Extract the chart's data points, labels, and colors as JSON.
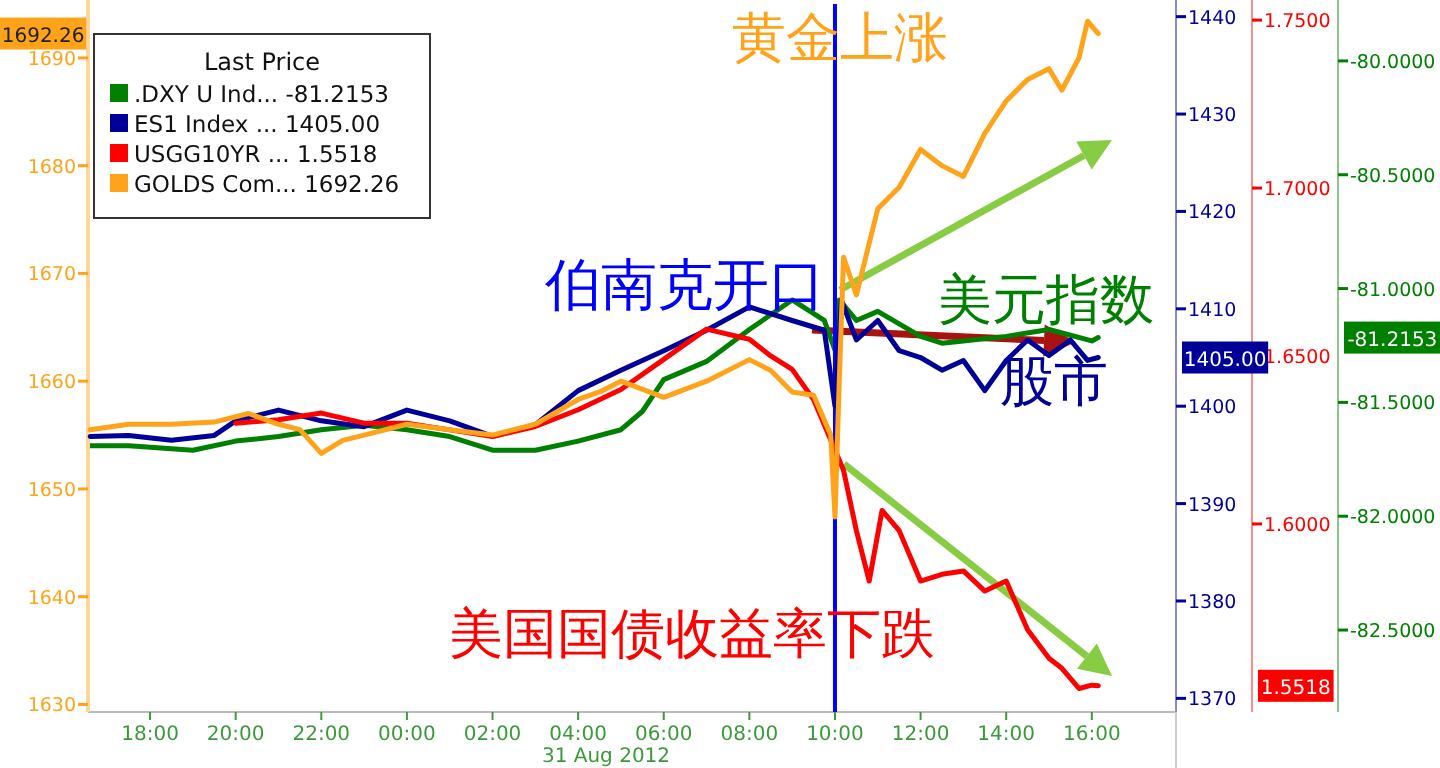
{
  "chart_data": [
    {
      "type": "line",
      "legend": "top left",
      "legend_title": "Last Price",
      "grid": false,
      "xlim": [
        "2012-08-30T16:33",
        "2012-08-31T17:58"
      ],
      "xticks": [
        {
          "value": "2012-08-30T18:00",
          "label": "18:00"
        },
        {
          "value": "2012-08-30T20:00",
          "label": "20:00"
        },
        {
          "value": "2012-08-30T22:00",
          "label": "22:00"
        },
        {
          "value": "2012-08-31T00:00",
          "label": "00:00"
        },
        {
          "value": "2012-08-31T02:00",
          "label": "02:00"
        },
        {
          "value": "2012-08-31T04:00",
          "label": "04:00"
        },
        {
          "value": "2012-08-31T06:00",
          "label": "06:00"
        },
        {
          "value": "2012-08-31T08:00",
          "label": "08:00"
        },
        {
          "value": "2012-08-31T10:00",
          "label": "10:00"
        },
        {
          "value": "2012-08-31T12:00",
          "label": "12:00"
        },
        {
          "value": "2012-08-31T14:00",
          "label": "14:00"
        },
        {
          "value": "2012-08-31T16:00",
          "label": "16:00"
        }
      ],
      "ylim": [
        1629.3,
        1695
      ],
      "yticks": [
        1630,
        1640,
        1650,
        1660,
        1670,
        1680,
        1690
      ],
      "y2lim": [
        1368.6,
        1441.3
      ],
      "y2ticks": [
        1370,
        1380,
        1390,
        1400,
        1410,
        1420,
        1430,
        1440
      ],
      "y3lim": [
        1.544,
        1.7548
      ],
      "y3ticks": [
        {
          "value": 1.6,
          "label": "1.6000"
        },
        {
          "value": 1.65,
          "label": "1.6500"
        },
        {
          "value": 1.7,
          "label": "1.7000"
        },
        {
          "value": 1.75,
          "label": "1.7500"
        }
      ],
      "ref_lines": [
        {
          "axis": "x",
          "value": "2012-08-31T10:00",
          "color": "#0000ff"
        }
      ],
      "annotations": [
        "黄金上涨",
        {
          "text": "伯南克开口",
          "x": "2012-08-31T10:00",
          "y": 1669
        },
        "股市",
        "美国国债收益率下跌",
        "31 Aug 2012",
        "1692.26",
        "1405.00",
        "1.5518"
      ],
      "series": [
        {
          "name": "ES1 Index  ... 1405.00",
          "color": "#000099",
          "axis": "y2",
          "x": [
            "2012-08-30T16:36",
            "2012-08-30T17:30",
            "2012-08-30T18:30",
            "2012-08-30T19:30",
            "2012-08-30T20:00",
            "2012-08-30T21:00",
            "2012-08-30T22:00",
            "2012-08-30T23:00",
            "2012-08-31T00:00",
            "2012-08-31T01:00",
            "2012-08-31T02:00",
            "2012-08-31T03:00",
            "2012-08-31T04:00",
            "2012-08-31T05:00",
            "2012-08-31T06:00",
            "2012-08-31T07:00",
            "2012-08-31T08:00",
            "2012-08-31T09:00",
            "2012-08-31T09:45",
            "2012-08-31T10:00",
            "2012-08-31T10:09",
            "2012-08-31T10:30",
            "2012-08-31T11:00",
            "2012-08-31T11:30",
            "2012-08-31T12:00",
            "2012-08-31T12:30",
            "2012-08-31T13:00",
            "2012-08-31T13:30",
            "2012-08-31T14:00",
            "2012-08-31T14:30",
            "2012-08-31T15:00",
            "2012-08-31T15:30",
            "2012-08-31T15:54",
            "2012-08-31T16:09"
          ],
          "values": [
            1396.9,
            1397,
            1396.5,
            1397,
            1398.5,
            1399.6,
            1398.5,
            1397.9,
            1399.6,
            1398.5,
            1396.9,
            1398.1,
            1401.6,
            1403.7,
            1405.7,
            1407.8,
            1410.2,
            1408.8,
            1407.8,
            1400,
            1410.9,
            1406.8,
            1408.8,
            1405.7,
            1405,
            1403.7,
            1404.7,
            1401.6,
            1404.7,
            1406.8,
            1405.2,
            1406.8,
            1404.7,
            1405.0
          ]
        },
        {
          "name": "USGG10YR ... 1.5518",
          "color": "#ff0000",
          "axis": "y3",
          "x": [
            "2012-08-30T20:00",
            "2012-08-30T21:00",
            "2012-08-30T22:00",
            "2012-08-30T23:00",
            "2012-08-31T00:00",
            "2012-08-31T01:00",
            "2012-08-31T02:00",
            "2012-08-31T03:00",
            "2012-08-31T04:00",
            "2012-08-31T05:00",
            "2012-08-31T06:00",
            "2012-08-31T07:00",
            "2012-08-31T08:00",
            "2012-08-31T08:30",
            "2012-08-31T09:00",
            "2012-08-31T09:30",
            "2012-08-31T09:48",
            "2012-08-31T10:00",
            "2012-08-31T10:12",
            "2012-08-31T10:30",
            "2012-08-31T10:48",
            "2012-08-31T11:06",
            "2012-08-31T11:30",
            "2012-08-31T12:00",
            "2012-08-31T12:30",
            "2012-08-31T13:00",
            "2012-08-31T13:30",
            "2012-08-31T14:00",
            "2012-08-31T14:30",
            "2012-08-31T15:00",
            "2012-08-31T15:18",
            "2012-08-31T15:42",
            "2012-08-31T16:00",
            "2012-08-31T16:09"
          ],
          "values": [
            1.63,
            1.631,
            1.633,
            1.63,
            1.63,
            1.628,
            1.626,
            1.629,
            1.634,
            1.64,
            1.649,
            1.658,
            1.655,
            1.65,
            1.646,
            1.637,
            1.628,
            1.622,
            1.616,
            1.598,
            1.583,
            1.604,
            1.598,
            1.583,
            1.585,
            1.586,
            1.58,
            1.583,
            1.5685,
            1.56,
            1.557,
            1.551,
            1.552,
            1.5518
          ]
        },
        {
          "name": "GOLDS Com... 1692.26",
          "color": "#ffa31a",
          "x": [
            "2012-08-30T16:36",
            "2012-08-30T17:30",
            "2012-08-30T18:30",
            "2012-08-30T19:30",
            "2012-08-30T20:18",
            "2012-08-30T21:00",
            "2012-08-30T21:30",
            "2012-08-30T22:00",
            "2012-08-30T22:30",
            "2012-08-30T23:00",
            "2012-08-31T00:00",
            "2012-08-31T01:00",
            "2012-08-31T02:00",
            "2012-08-31T03:00",
            "2012-08-31T04:00",
            "2012-08-31T04:30",
            "2012-08-31T05:00",
            "2012-08-31T06:00",
            "2012-08-31T07:00",
            "2012-08-31T08:00",
            "2012-08-31T08:30",
            "2012-08-31T09:00",
            "2012-08-31T09:30",
            "2012-08-31T09:54",
            "2012-08-31T10:00",
            "2012-08-31T10:06",
            "2012-08-31T10:12",
            "2012-08-31T10:30",
            "2012-08-31T11:00",
            "2012-08-31T11:30",
            "2012-08-31T12:00",
            "2012-08-31T12:30",
            "2012-08-31T13:00",
            "2012-08-31T13:30",
            "2012-08-31T14:00",
            "2012-08-31T14:30",
            "2012-08-31T15:00",
            "2012-08-31T15:18",
            "2012-08-31T15:42",
            "2012-08-31T15:54",
            "2012-08-31T16:09"
          ],
          "values": [
            1655.5,
            1656,
            1656,
            1656.2,
            1657,
            1656,
            1655.5,
            1653.3,
            1654.5,
            1655,
            1656,
            1655.5,
            1655,
            1656,
            1658.3,
            1659,
            1660,
            1658.5,
            1660,
            1662,
            1661,
            1659,
            1658.7,
            1655,
            1647.4,
            1660,
            1671.5,
            1668,
            1676,
            1678,
            1681.5,
            1680,
            1679,
            1683,
            1686,
            1688,
            1689,
            1687,
            1690,
            1693.4,
            1692.26
          ]
        }
      ]
    },
    {
      "type": "line",
      "legend": "top left",
      "grid": false,
      "tick_labels": "y",
      "xlim": [
        "2012-08-30T16:33",
        "2012-08-31T17:58"
      ],
      "ylim": [
        -82.86,
        -79.75
      ],
      "annotations": [
        "-81.2153",
        {
          "text": "美元指数",
          "x": "2012-08-31T16:09",
          "y": -81.2153
        }
      ],
      "yticks": [
        {
          "value": -82.5,
          "label": "-82.5000"
        },
        {
          "value": -82,
          "label": "-82.0000"
        },
        {
          "value": -81.5,
          "label": "-81.5000"
        },
        {
          "value": -81,
          "label": "-81.0000"
        },
        {
          "value": -80.5,
          "label": "-80.5000"
        },
        {
          "value": -80,
          "label": "-80.0000"
        }
      ],
      "series": [
        {
          "name": ".DXY U Ind...   -81.2153",
          "color": "#008000",
          "x": [
            "2012-08-30T16:36",
            "2012-08-30T17:30",
            "2012-08-30T19:00",
            "2012-08-30T20:00",
            "2012-08-30T21:00",
            "2012-08-30T22:00",
            "2012-08-30T23:00",
            "2012-08-31T00:00",
            "2012-08-31T01:00",
            "2012-08-31T02:00",
            "2012-08-31T03:00",
            "2012-08-31T04:00",
            "2012-08-31T05:00",
            "2012-08-31T05:30",
            "2012-08-31T06:00",
            "2012-08-31T07:00",
            "2012-08-31T08:00",
            "2012-08-31T09:00",
            "2012-08-31T09:45",
            "2012-08-31T10:00",
            "2012-08-31T10:06",
            "2012-08-31T10:30",
            "2012-08-31T11:00",
            "2012-08-31T12:00",
            "2012-08-31T12:30",
            "2012-08-31T13:00",
            "2012-08-31T14:00",
            "2012-08-31T15:00",
            "2012-08-31T16:00",
            "2012-08-31T16:09"
          ],
          "values": [
            -81.69,
            -81.69,
            -81.71,
            -81.67,
            -81.65,
            -81.62,
            -81.6,
            -81.62,
            -81.65,
            -81.71,
            -81.71,
            -81.67,
            -81.62,
            -81.54,
            -81.4,
            -81.32,
            -81.18,
            -81.05,
            -81.14,
            -81.27,
            -81.05,
            -81.14,
            -81.1,
            -81.21,
            -81.24,
            -81.23,
            -81.21,
            -81.18,
            -81.23,
            -81.2153
          ]
        }
      ]
    }
  ]
}
